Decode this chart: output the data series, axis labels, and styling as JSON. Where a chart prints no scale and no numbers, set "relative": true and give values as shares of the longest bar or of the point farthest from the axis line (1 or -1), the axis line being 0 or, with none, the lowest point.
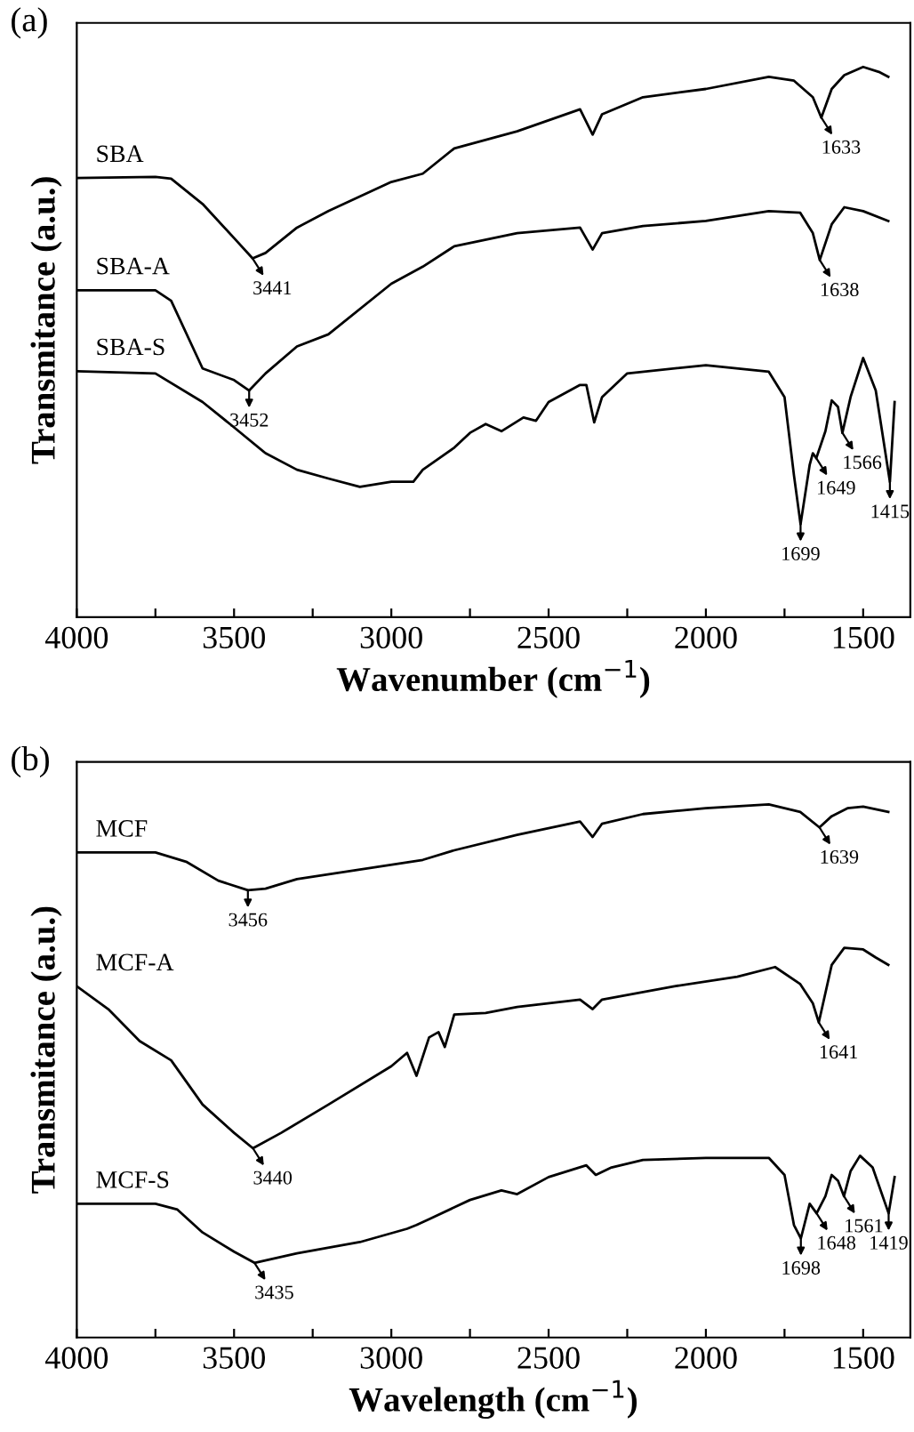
{
  "chart_data": [
    {
      "type": "line",
      "title": "(a)",
      "xlabel": "Wavenumber (cm$^{−1}$)",
      "ylabel": "Transmitance (a.u.)",
      "relative": true,
      "xlim": [
        4000,
        1350
      ],
      "xticks": [
        4000,
        {
          "value": 3750,
          "label": null
        },
        3500,
        {
          "value": 3250,
          "label": null
        },
        3000,
        {
          "value": 2750,
          "label": null
        },
        2500,
        {
          "value": 2250,
          "label": null
        },
        2000,
        {
          "value": 1750,
          "label": null
        },
        1500
      ],
      "tick_labels": "x",
      "grid": false,
      "legend": false,
      "line_style": "solid",
      "marker": "none",
      "series": [
        {
          "name": "SBA",
          "color": "#000000",
          "x": [
            4000,
            3750,
            3700,
            3600,
            3500,
            3441,
            3400,
            3300,
            3200,
            3000,
            2900,
            2800,
            2600,
            2400,
            2360,
            2330,
            2200,
            2000,
            1800,
            1720,
            1660,
            1633,
            1600,
            1560,
            1500,
            1450,
            1420
          ],
          "values": [
            0.798,
            0.8,
            0.797,
            0.751,
            0.689,
            0.652,
            0.662,
            0.708,
            0.738,
            0.791,
            0.806,
            0.852,
            0.883,
            0.923,
            0.877,
            0.914,
            0.945,
            0.96,
            0.982,
            0.975,
            0.945,
            0.908,
            0.96,
            0.985,
            1.0,
            0.991,
            0.982
          ]
        },
        {
          "name": "SBA-A",
          "color": "#000000",
          "x": [
            4000,
            3750,
            3700,
            3600,
            3500,
            3452,
            3400,
            3300,
            3200,
            3000,
            2900,
            2800,
            2600,
            2400,
            2360,
            2330,
            2200,
            2000,
            1800,
            1700,
            1660,
            1638,
            1600,
            1560,
            1500,
            1420
          ],
          "values": [
            0.594,
            0.594,
            0.575,
            0.452,
            0.431,
            0.412,
            0.443,
            0.492,
            0.514,
            0.606,
            0.637,
            0.674,
            0.698,
            0.708,
            0.668,
            0.698,
            0.711,
            0.72,
            0.738,
            0.735,
            0.698,
            0.649,
            0.714,
            0.745,
            0.738,
            0.72
          ]
        },
        {
          "name": "SBA-S",
          "color": "#000000",
          "x": [
            4000,
            3750,
            3600,
            3500,
            3400,
            3300,
            3200,
            3100,
            3000,
            2930,
            2900,
            2800,
            2750,
            2700,
            2650,
            2580,
            2540,
            2500,
            2400,
            2380,
            2355,
            2330,
            2250,
            2000,
            1800,
            1750,
            1720,
            1699,
            1670,
            1660,
            1649,
            1620,
            1600,
            1580,
            1566,
            1540,
            1500,
            1460,
            1415,
            1400
          ],
          "values": [
            0.447,
            0.443,
            0.391,
            0.345,
            0.298,
            0.268,
            0.252,
            0.237,
            0.246,
            0.246,
            0.268,
            0.308,
            0.335,
            0.351,
            0.338,
            0.363,
            0.357,
            0.391,
            0.422,
            0.422,
            0.354,
            0.4,
            0.443,
            0.458,
            0.446,
            0.4,
            0.258,
            0.169,
            0.277,
            0.298,
            0.289,
            0.338,
            0.394,
            0.382,
            0.335,
            0.4,
            0.471,
            0.412,
            0.246,
            0.391
          ]
        }
      ],
      "annotations": [
        {
          "text": "3441",
          "x": 3441,
          "y": 0.652
        },
        {
          "text": "1633",
          "x": 1633,
          "y": 0.908
        },
        {
          "text": "3452",
          "x": 3452,
          "y": 0.412
        },
        {
          "text": "1638",
          "x": 1638,
          "y": 0.649
        },
        {
          "text": "1699",
          "x": 1699,
          "y": 0.169
        },
        {
          "text": "1649",
          "x": 1649,
          "y": 0.289
        },
        {
          "text": "1566",
          "x": 1566,
          "y": 0.335
        },
        {
          "text": "1415",
          "x": 1415,
          "y": 0.246
        }
      ]
    },
    {
      "type": "line",
      "title": "(b)",
      "xlabel": "Wavelength (cm$^{−1}$)",
      "ylabel": "Transmitance (a.u.)",
      "relative": true,
      "xlim": [
        4000,
        1350
      ],
      "xticks": [
        4000,
        {
          "value": 3750,
          "label": null
        },
        3500,
        {
          "value": 3250,
          "label": null
        },
        3000,
        {
          "value": 2750,
          "label": null
        },
        2500,
        {
          "value": 2250,
          "label": null
        },
        2000,
        {
          "value": 1750,
          "label": null
        },
        1500
      ],
      "tick_labels": "x",
      "grid": false,
      "legend": false,
      "line_style": "solid",
      "marker": "none",
      "series": [
        {
          "name": "MCF",
          "color": "#000000",
          "x": [
            4000,
            3750,
            3650,
            3550,
            3456,
            3400,
            3300,
            3100,
            2900,
            2800,
            2600,
            2400,
            2360,
            2330,
            2200,
            2000,
            1800,
            1700,
            1639,
            1600,
            1550,
            1500,
            1420
          ],
          "values": [
            0.91,
            0.91,
            0.892,
            0.857,
            0.839,
            0.842,
            0.86,
            0.878,
            0.896,
            0.914,
            0.943,
            0.968,
            0.939,
            0.964,
            0.982,
            0.993,
            1.0,
            0.986,
            0.957,
            0.978,
            0.993,
            0.996,
            0.986
          ]
        },
        {
          "name": "MCF-A",
          "color": "#000000",
          "x": [
            4000,
            3900,
            3800,
            3700,
            3600,
            3500,
            3440,
            3350,
            3200,
            3000,
            2950,
            2920,
            2880,
            2850,
            2830,
            2800,
            2700,
            2600,
            2400,
            2360,
            2330,
            2100,
            1900,
            1780,
            1700,
            1660,
            1641,
            1600,
            1560,
            1500,
            1460,
            1420
          ],
          "values": [
            0.659,
            0.616,
            0.556,
            0.52,
            0.437,
            0.384,
            0.355,
            0.384,
            0.437,
            0.509,
            0.534,
            0.491,
            0.563,
            0.573,
            0.545,
            0.606,
            0.609,
            0.62,
            0.634,
            0.616,
            0.634,
            0.659,
            0.677,
            0.695,
            0.663,
            0.627,
            0.591,
            0.699,
            0.731,
            0.728,
            0.713,
            0.699
          ]
        },
        {
          "name": "MCF-S",
          "color": "#000000",
          "x": [
            4000,
            3750,
            3680,
            3600,
            3500,
            3435,
            3300,
            3100,
            2950,
            2920,
            2880,
            2750,
            2650,
            2600,
            2500,
            2380,
            2350,
            2300,
            2200,
            2000,
            1800,
            1750,
            1720,
            1698,
            1670,
            1648,
            1620,
            1600,
            1580,
            1561,
            1540,
            1510,
            1470,
            1419,
            1400
          ],
          "values": [
            0.251,
            0.251,
            0.24,
            0.197,
            0.161,
            0.14,
            0.158,
            0.179,
            0.204,
            0.211,
            0.222,
            0.258,
            0.276,
            0.269,
            0.301,
            0.323,
            0.305,
            0.319,
            0.333,
            0.337,
            0.337,
            0.305,
            0.211,
            0.186,
            0.251,
            0.233,
            0.265,
            0.305,
            0.294,
            0.265,
            0.312,
            0.341,
            0.319,
            0.233,
            0.301
          ]
        }
      ],
      "annotations": [
        {
          "text": "3456",
          "x": 3456,
          "y": 0.839
        },
        {
          "text": "1639",
          "x": 1639,
          "y": 0.957
        },
        {
          "text": "3440",
          "x": 3440,
          "y": 0.355
        },
        {
          "text": "1641",
          "x": 1641,
          "y": 0.591
        },
        {
          "text": "3435",
          "x": 3435,
          "y": 0.14
        },
        {
          "text": "1698",
          "x": 1698,
          "y": 0.186
        },
        {
          "text": "1648",
          "x": 1648,
          "y": 0.233
        },
        {
          "text": "1561",
          "x": 1561,
          "y": 0.265
        },
        {
          "text": "1419",
          "x": 1419,
          "y": 0.233
        }
      ]
    }
  ]
}
